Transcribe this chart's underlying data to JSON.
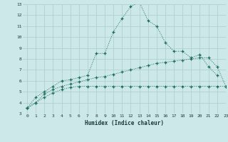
{
  "xlabel": "Humidex (Indice chaleur)",
  "background_color": "#cce8e8",
  "grid_color": "#b0d0d0",
  "line_color": "#1a6b5a",
  "ylim": [
    3,
    13
  ],
  "xlim": [
    -0.5,
    23
  ],
  "yticks": [
    3,
    4,
    5,
    6,
    7,
    8,
    9,
    10,
    11,
    12,
    13
  ],
  "xticks": [
    0,
    1,
    2,
    3,
    4,
    5,
    6,
    7,
    8,
    9,
    10,
    11,
    12,
    13,
    14,
    15,
    16,
    17,
    18,
    19,
    20,
    21,
    22,
    23
  ],
  "x_upper": [
    0,
    1,
    2,
    3,
    4,
    5,
    6,
    7,
    8,
    9,
    10,
    11,
    12,
    13,
    14,
    15,
    16,
    17,
    18,
    19,
    20,
    21,
    22
  ],
  "y_upper": [
    3.5,
    4.5,
    5.0,
    5.5,
    6.0,
    6.1,
    6.3,
    6.5,
    8.5,
    8.5,
    10.5,
    11.7,
    12.8,
    13.2,
    11.5,
    11.0,
    9.5,
    8.7,
    8.7,
    8.1,
    8.4,
    7.3,
    6.5
  ],
  "x_diag": [
    0,
    1,
    2,
    3,
    4,
    5,
    6,
    7,
    8,
    9,
    10,
    11,
    12,
    13,
    14,
    15,
    16,
    17,
    18,
    19,
    20,
    21,
    22,
    23
  ],
  "y_diag": [
    3.5,
    4.0,
    4.8,
    5.2,
    5.5,
    5.7,
    5.9,
    6.1,
    6.3,
    6.4,
    6.6,
    6.8,
    7.0,
    7.2,
    7.4,
    7.6,
    7.7,
    7.8,
    7.9,
    8.0,
    8.1,
    8.1,
    7.3,
    5.5
  ],
  "x_flat": [
    0,
    1,
    2,
    3,
    4,
    5,
    6,
    7,
    8,
    9,
    10,
    11,
    12,
    13,
    14,
    15,
    16,
    17,
    18,
    19,
    20,
    21,
    22,
    23
  ],
  "y_flat": [
    3.5,
    4.0,
    4.5,
    4.9,
    5.2,
    5.4,
    5.5,
    5.5,
    5.5,
    5.5,
    5.5,
    5.5,
    5.5,
    5.5,
    5.5,
    5.5,
    5.5,
    5.5,
    5.5,
    5.5,
    5.5,
    5.5,
    5.5,
    5.5
  ]
}
